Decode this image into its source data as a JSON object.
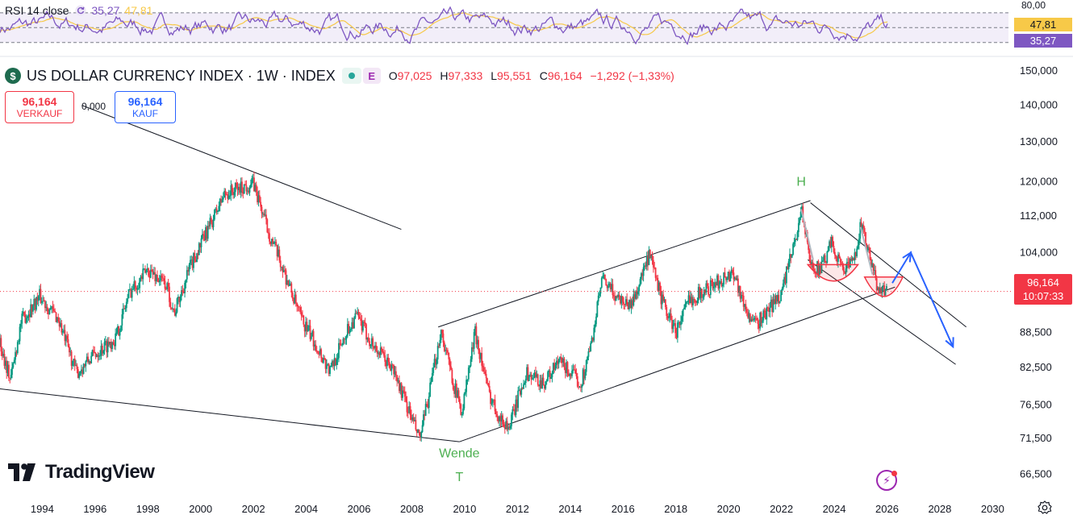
{
  "rsi": {
    "label": "RSI 14 close",
    "rsi_value": "35,27",
    "ma_value": "47,81",
    "levels": [
      70,
      50,
      30
    ],
    "axis_tick": "80,00",
    "rsi_color": "#7e57c2",
    "ma_color": "#f7c948"
  },
  "header": {
    "symbol_icon": "dollar-sign-icon",
    "title": "US DOLLAR CURRENCY INDEX · 1W · INDEX",
    "badge_e": "E",
    "open_key": "O",
    "open": "97,025",
    "high_key": "H",
    "high": "97,333",
    "low_key": "L",
    "low": "95,551",
    "close_key": "C",
    "close": "96,164",
    "change": "−1,292 (−1,33%)"
  },
  "trade": {
    "sell_price": "96,164",
    "sell_label": "VERKAUF",
    "spread": "0,000",
    "buy_price": "96,164",
    "buy_label": "KAUF"
  },
  "price_tag": {
    "price": "96,164",
    "countdown": "10:07:33"
  },
  "brand": {
    "logo_text": "TradingView"
  },
  "chart_data": {
    "type": "candlestick",
    "y_scale": "log",
    "ylim": [
      64.0,
      155.0
    ],
    "y_ticks": [
      "150,000",
      "140,000",
      "130,000",
      "120,000",
      "112,000",
      "104,000",
      "88,500",
      "82,500",
      "76,500",
      "71,500",
      "66,500"
    ],
    "y_tick_values": [
      150,
      140,
      130,
      120,
      112,
      104,
      88.5,
      82.5,
      76.5,
      71.5,
      66.5
    ],
    "x_ticks": [
      "1994",
      "1996",
      "1998",
      "2000",
      "2002",
      "2004",
      "2006",
      "2008",
      "2010",
      "2012",
      "2014",
      "2016",
      "2018",
      "2020",
      "2022",
      "2024",
      "2026",
      "2028",
      "2030"
    ],
    "x_tick_values": [
      1994,
      1996,
      1998,
      2000,
      2002,
      2004,
      2006,
      2008,
      2010,
      2012,
      2014,
      2016,
      2018,
      2020,
      2022,
      2024,
      2026,
      2028,
      2030
    ],
    "xlim": [
      1992.4,
      2030.6
    ],
    "last_price": 96.164,
    "price_path": [
      [
        1992.4,
        86.5
      ],
      [
        1992.8,
        80.5
      ],
      [
        1993.2,
        90.5
      ],
      [
        1993.9,
        95.2
      ],
      [
        1994.6,
        91.0
      ],
      [
        1995.3,
        81.5
      ],
      [
        1996.0,
        84.8
      ],
      [
        1996.8,
        87.6
      ],
      [
        1997.3,
        96.0
      ],
      [
        1998.0,
        100.5
      ],
      [
        1998.7,
        97.4
      ],
      [
        1999.0,
        92.0
      ],
      [
        1999.6,
        101.0
      ],
      [
        2000.4,
        110.5
      ],
      [
        2000.9,
        117.0
      ],
      [
        2001.5,
        118.5
      ],
      [
        2002.0,
        119.5
      ],
      [
        2002.6,
        108.0
      ],
      [
        2003.2,
        99.5
      ],
      [
        2003.8,
        91.0
      ],
      [
        2004.3,
        87.0
      ],
      [
        2004.9,
        81.8
      ],
      [
        2005.5,
        88.5
      ],
      [
        2005.9,
        91.5
      ],
      [
        2006.5,
        86.5
      ],
      [
        2007.3,
        82.0
      ],
      [
        2007.8,
        76.5
      ],
      [
        2008.3,
        71.3
      ],
      [
        2008.7,
        79.0
      ],
      [
        2009.1,
        89.0
      ],
      [
        2009.6,
        79.5
      ],
      [
        2009.9,
        75.5
      ],
      [
        2010.4,
        88.6
      ],
      [
        2010.9,
        78.5
      ],
      [
        2011.4,
        74.0
      ],
      [
        2011.7,
        73.2
      ],
      [
        2012.3,
        81.5
      ],
      [
        2013.0,
        80.0
      ],
      [
        2013.6,
        83.5
      ],
      [
        2014.4,
        79.8
      ],
      [
        2014.8,
        86.5
      ],
      [
        2015.2,
        98.5
      ],
      [
        2015.7,
        95.5
      ],
      [
        2016.3,
        93.5
      ],
      [
        2017.0,
        103.3
      ],
      [
        2017.5,
        94.0
      ],
      [
        2018.0,
        88.6
      ],
      [
        2018.5,
        94.5
      ],
      [
        2019.3,
        97.0
      ],
      [
        2020.2,
        100.0
      ],
      [
        2020.6,
        93.2
      ],
      [
        2021.0,
        89.8
      ],
      [
        2021.5,
        92.5
      ],
      [
        2022.0,
        96.0
      ],
      [
        2022.5,
        106.0
      ],
      [
        2022.75,
        114.0
      ],
      [
        2023.1,
        101.5
      ],
      [
        2023.5,
        100.5
      ],
      [
        2023.9,
        106.0
      ],
      [
        2024.3,
        100.8
      ],
      [
        2024.7,
        101.5
      ],
      [
        2025.0,
        110.0
      ],
      [
        2025.3,
        104.0
      ],
      [
        2025.6,
        97.5
      ],
      [
        2026.0,
        96.164
      ]
    ],
    "annotations": [
      {
        "text": "H",
        "x": 2022.75,
        "y": 119.0,
        "color": "#4caf50"
      },
      {
        "text": "Wende",
        "x": 2009.8,
        "y": 68.8,
        "color": "#4caf50"
      },
      {
        "text": "T",
        "x": 2009.8,
        "y": 65.6,
        "color": "#4caf50"
      }
    ],
    "trendlines": [
      {
        "name": "long-downtrend-line",
        "points": [
          [
            1995.5,
            140.0
          ],
          [
            2007.6,
            109.0
          ]
        ],
        "color": "#131722"
      },
      {
        "name": "lower-support-line",
        "points": [
          [
            1992.4,
            79.0
          ],
          [
            2009.8,
            71.0
          ]
        ],
        "color": "#131722"
      },
      {
        "name": "channel-upper-line",
        "points": [
          [
            2009.0,
            89.5
          ],
          [
            2023.1,
            115.5
          ]
        ],
        "color": "#131722"
      },
      {
        "name": "channel-lower-line",
        "points": [
          [
            2009.8,
            71.0
          ],
          [
            2026.3,
            97.0
          ]
        ],
        "color": "#131722"
      },
      {
        "name": "down-channel-upper-line",
        "points": [
          [
            2023.1,
            115.0
          ],
          [
            2029.0,
            89.5
          ]
        ],
        "color": "#131722"
      },
      {
        "name": "down-channel-lower-line",
        "points": [
          [
            2023.0,
            102.5
          ],
          [
            2028.6,
            83.0
          ]
        ],
        "color": "#131722"
      }
    ],
    "projection": {
      "color": "#2962ff",
      "points": [
        [
          2026.2,
          97.8
        ],
        [
          2026.9,
          104.0
        ],
        [
          2028.5,
          86.0
        ]
      ]
    }
  }
}
